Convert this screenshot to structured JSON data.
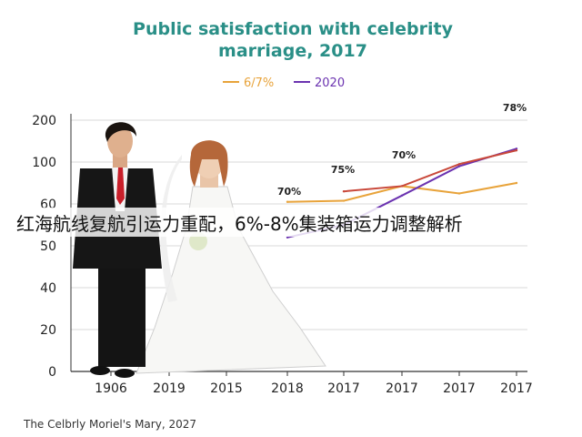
{
  "chart_data": {
    "type": "line",
    "title_line1": "Public satisfaction with celebrity",
    "title_line2": "marriage, 2017",
    "categories": [
      "1906",
      "2019",
      "2015",
      "2018",
      "2017",
      "2017",
      "2017",
      "2017"
    ],
    "y_ticks": [
      "0",
      "20",
      "40",
      "50",
      "60",
      "100",
      "200"
    ],
    "legend_position": "top-center",
    "grid": true,
    "series": [
      {
        "name": "6/7%",
        "color": "#e8a33a",
        "values": [
          null,
          null,
          null,
          62,
          63,
          77,
          70,
          80
        ]
      },
      {
        "name": "2020",
        "color": "#6b33b0",
        "values": [
          null,
          null,
          null,
          52,
          55,
          68,
          96,
          132
        ]
      },
      {
        "name": "",
        "color": "#c9483a",
        "values": [
          null,
          null,
          null,
          null,
          72,
          77,
          98,
          128
        ]
      }
    ],
    "data_labels": [
      "70%",
      "75%",
      "70%",
      "78%"
    ],
    "colors": {
      "title": "#2a8f87",
      "grid": "#d9d9d9",
      "axis": "#333333"
    }
  },
  "overlay_banner": "红海航线复航引运力重配，6%-8%集装箱运力调整解析",
  "footer_caption": "The Celbrly Moriel's Mary, 2027"
}
